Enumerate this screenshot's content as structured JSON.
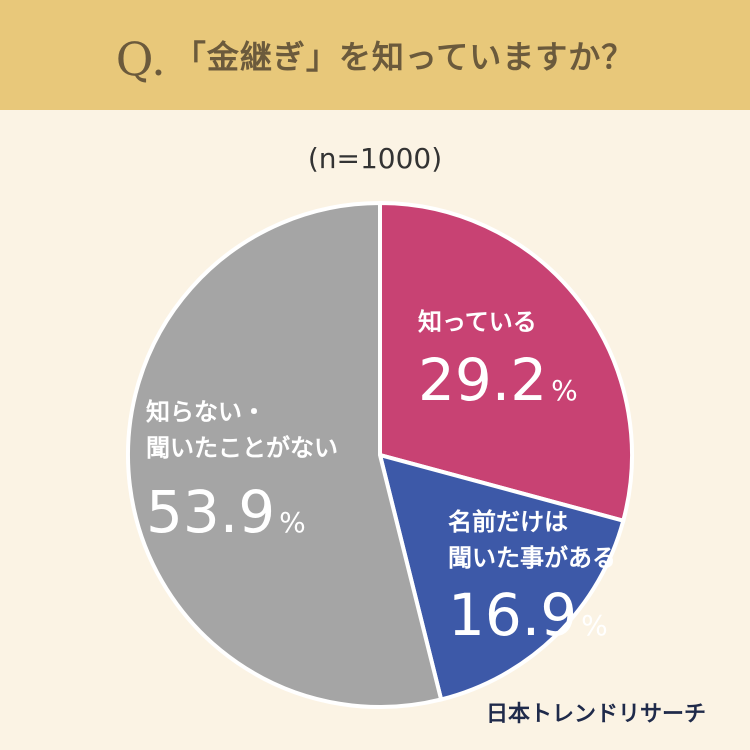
{
  "header": {
    "q_mark": "Q.",
    "question": "「金継ぎ」を知っていますか？"
  },
  "sample_label": "(n=1000)",
  "credit": "日本トレンドリサーチ",
  "chart_data": {
    "type": "pie",
    "title": "「金継ぎ」を知っていますか？",
    "slices": [
      {
        "label_lines": [
          "知っている"
        ],
        "value": 29.2,
        "value_label": "29.2",
        "unit": "%",
        "color": "#c84273"
      },
      {
        "label_lines": [
          "名前だけは",
          "聞いた事がある"
        ],
        "value": 16.9,
        "value_label": "16.9",
        "unit": "%",
        "color": "#3d59a8"
      },
      {
        "label_lines": [
          "知らない・",
          "聞いたことがない"
        ],
        "value": 53.9,
        "value_label": "53.9",
        "unit": "%",
        "color": "#a5a5a5"
      }
    ]
  }
}
